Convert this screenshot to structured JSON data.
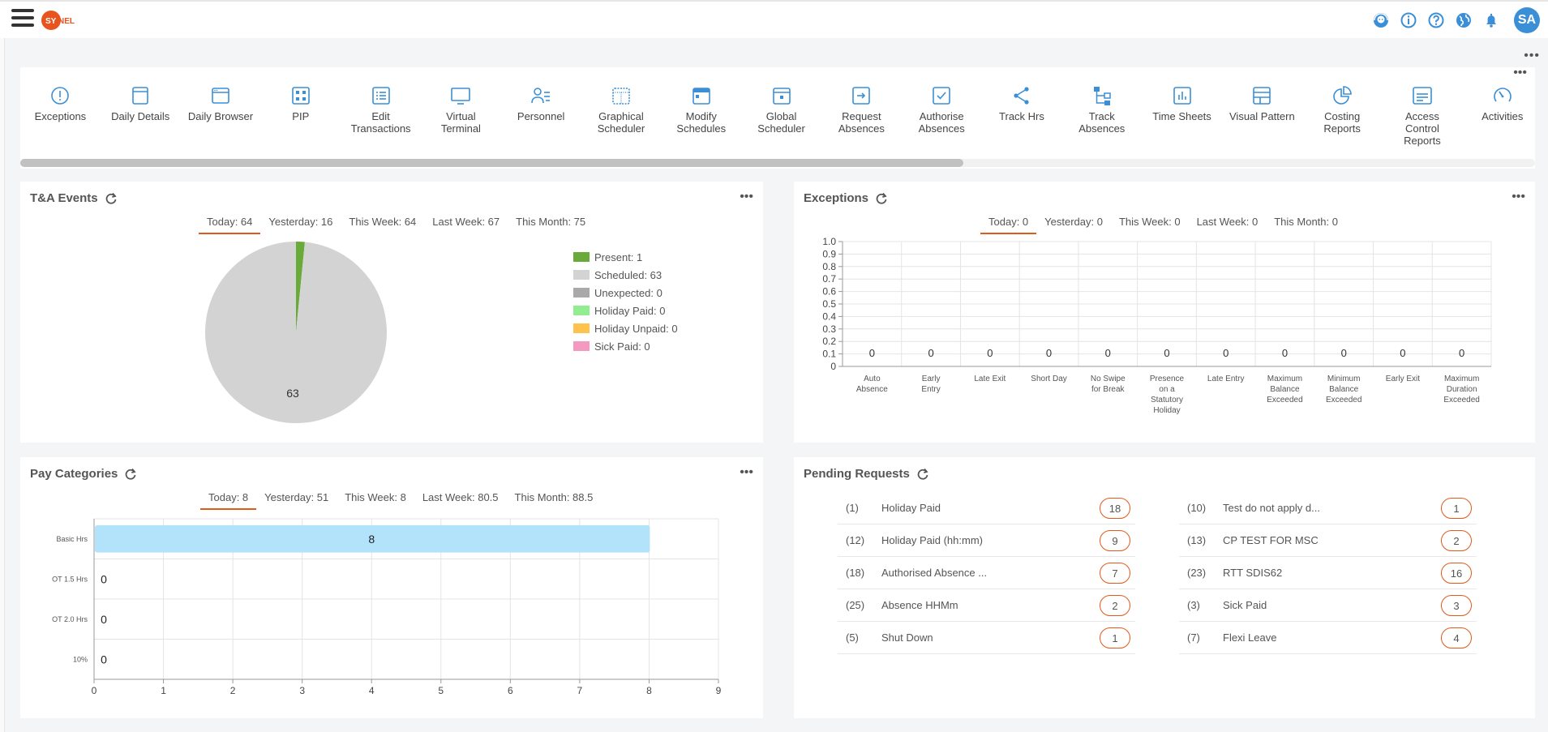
{
  "header": {
    "logo_text": "SYNEL",
    "avatar_initials": "SA",
    "icons": [
      "support-icon",
      "info-icon",
      "help-icon",
      "globe-icon",
      "bell-icon"
    ]
  },
  "toolbar": {
    "items": [
      {
        "label": "Exceptions",
        "icon": "exclamation-circle-icon"
      },
      {
        "label": "Daily Details",
        "icon": "window-icon"
      },
      {
        "label": "Daily Browser",
        "icon": "browser-icon"
      },
      {
        "label": "PIP",
        "icon": "grid-icon"
      },
      {
        "label": "Edit Transactions",
        "icon": "list-icon"
      },
      {
        "label": "Virtual Terminal",
        "icon": "monitor-icon"
      },
      {
        "label": "Personnel",
        "icon": "person-icon"
      },
      {
        "label": "Graphical Scheduler",
        "icon": "dotted-calendar-icon"
      },
      {
        "label": "Modify Schedules",
        "icon": "calendar-icon"
      },
      {
        "label": "Global Scheduler",
        "icon": "calendar-plus-icon"
      },
      {
        "label": "Request Absences",
        "icon": "arrow-box-icon"
      },
      {
        "label": "Authorise Absences",
        "icon": "check-box-icon"
      },
      {
        "label": "Track Hrs",
        "icon": "share-icon"
      },
      {
        "label": "Track Absences",
        "icon": "hierarchy-icon"
      },
      {
        "label": "Time Sheets",
        "icon": "bar-chart-icon"
      },
      {
        "label": "Visual Pattern",
        "icon": "layout-icon"
      },
      {
        "label": "Costing Reports",
        "icon": "pie-chart-icon"
      },
      {
        "label": "Access Control Reports",
        "icon": "report-icon"
      },
      {
        "label": "Activities",
        "icon": "gauge-icon"
      }
    ]
  },
  "ta_events": {
    "title": "T&A Events",
    "tabs": [
      "Today: 64",
      "Yesterday: 16",
      "This Week: 64",
      "Last Week: 67",
      "This Month: 75"
    ],
    "active_tab": 0,
    "pie_label": "63",
    "legend": [
      {
        "label": "Present: 1",
        "color": "#6aaa3a"
      },
      {
        "label": "Scheduled: 63",
        "color": "#d3d3d3"
      },
      {
        "label": "Unexpected: 0",
        "color": "#a9a9a9"
      },
      {
        "label": "Holiday Paid: 0",
        "color": "#90ee90"
      },
      {
        "label": "Holiday Unpaid: 0",
        "color": "#ffc34d"
      },
      {
        "label": "Sick Paid: 0",
        "color": "#f49ac1"
      }
    ]
  },
  "exceptions": {
    "title": "Exceptions",
    "tabs": [
      "Today: 0",
      "Yesterday: 0",
      "This Week: 0",
      "Last Week: 0",
      "This Month: 0"
    ],
    "active_tab": 0
  },
  "pay_categories": {
    "title": "Pay Categories",
    "tabs": [
      "Today: 8",
      "Yesterday: 51",
      "This Week: 8",
      "Last Week: 80.5",
      "This Month: 88.5"
    ],
    "active_tab": 0
  },
  "pending_requests": {
    "title": "Pending Requests",
    "left": [
      {
        "num": "(1)",
        "name": "Holiday Paid",
        "count": "18"
      },
      {
        "num": "(12)",
        "name": "Holiday Paid (hh:mm)",
        "count": "9"
      },
      {
        "num": "(18)",
        "name": "Authorised Absence ...",
        "count": "7"
      },
      {
        "num": "(25)",
        "name": "Absence HHMm",
        "count": "2"
      },
      {
        "num": "(5)",
        "name": "Shut Down",
        "count": "1"
      }
    ],
    "right": [
      {
        "num": "(10)",
        "name": "Test do not apply d...",
        "count": "1"
      },
      {
        "num": "(13)",
        "name": "CP TEST FOR MSC",
        "count": "2"
      },
      {
        "num": "(23)",
        "name": "RTT SDIS62",
        "count": "16"
      },
      {
        "num": "(3)",
        "name": "Sick Paid",
        "count": "3"
      },
      {
        "num": "(7)",
        "name": "Flexi Leave",
        "count": "4"
      }
    ]
  },
  "chart_data": [
    {
      "type": "pie",
      "categories": [
        "Present",
        "Scheduled",
        "Unexpected",
        "Holiday Paid",
        "Holiday Unpaid",
        "Sick Paid"
      ],
      "values": [
        1,
        63,
        0,
        0,
        0,
        0
      ],
      "colors": [
        "#6aaa3a",
        "#d3d3d3",
        "#a9a9a9",
        "#90ee90",
        "#ffc34d",
        "#f49ac1"
      ],
      "legend": "right"
    },
    {
      "type": "bar",
      "categories": [
        "Auto Absence",
        "Early Entry",
        "Late Exit",
        "Short Day",
        "No Swipe for Break",
        "Presence on a Statutory Holiday",
        "Late Entry",
        "Maximum Balance Exceeded",
        "Minimum Balance Exceeded",
        "Early Exit",
        "Maximum Duration Exceeded"
      ],
      "category_lines": [
        [
          "Auto",
          "Absence"
        ],
        [
          "Early",
          "Entry"
        ],
        [
          "Late Exit"
        ],
        [
          "Short Day"
        ],
        [
          "No Swipe",
          "for Break"
        ],
        [
          "Presence",
          "on a",
          "Statutory",
          "Holiday"
        ],
        [
          "Late Entry"
        ],
        [
          "Maximum",
          "Balance",
          "Exceeded"
        ],
        [
          "Minimum",
          "Balance",
          "Exceeded"
        ],
        [
          "Early Exit"
        ],
        [
          "Maximum",
          "Duration",
          "Exceeded"
        ]
      ],
      "values": [
        0,
        0,
        0,
        0,
        0,
        0,
        0,
        0,
        0,
        0,
        0
      ],
      "ylim": [
        0,
        1
      ],
      "yticks": [
        "0",
        "0.1",
        "0.2",
        "0.3",
        "0.4",
        "0.5",
        "0.6",
        "0.7",
        "0.8",
        "0.9",
        "1.0"
      ],
      "grid": true
    },
    {
      "type": "bar",
      "orientation": "horizontal",
      "categories": [
        "Basic Hrs",
        "OT 1.5 Hrs",
        "OT 2.0 Hrs",
        "10%"
      ],
      "values": [
        8,
        0,
        0,
        0
      ],
      "xlim": [
        0,
        9
      ],
      "xticks": [
        "0",
        "1",
        "2",
        "3",
        "4",
        "5",
        "6",
        "7",
        "8",
        "9"
      ],
      "bar_color": "#b3e3fb",
      "grid": true
    }
  ]
}
